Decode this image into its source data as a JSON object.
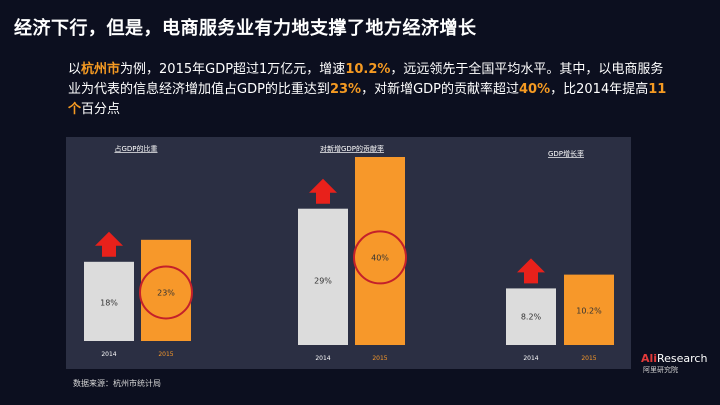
{
  "title": "经济下行，但是，电商服务业有力地支撑了地方经济增长",
  "paragraph": [
    {
      "text": "以",
      "hl": false
    },
    {
      "text": "杭州市",
      "hl": true
    },
    {
      "text": "为例，2015年GDP超过1万亿元，增速",
      "hl": false
    },
    {
      "text": "10.2%",
      "hl": true
    },
    {
      "text": "，远远领先于全国平均水平。其中，以电商服务业为代表的信息经济增加值占GDP的比重达到",
      "hl": false
    },
    {
      "text": "23%",
      "hl": true
    },
    {
      "text": "，对新增GDP的贡献率超过",
      "hl": false
    },
    {
      "text": "40%",
      "hl": true
    },
    {
      "text": "，比2014年提高",
      "hl": false
    },
    {
      "text": "11个",
      "hl": true
    },
    {
      "text": "百分点",
      "hl": false
    }
  ],
  "colors": {
    "bar_2014": "#dcdcdc",
    "bar_2015": "#f7982a",
    "arrow": "#e8211b",
    "circle": "#c4202a",
    "highlight": "#f59a22",
    "year_2014": "#ffffff",
    "year_2015": "#f7982a"
  },
  "chart_data": [
    {
      "type": "bar",
      "title": "占GDP的比重",
      "categories": [
        "2014",
        "2015"
      ],
      "values": [
        18,
        23
      ],
      "labels": [
        "18%",
        "23%"
      ],
      "ylim": [
        0,
        50
      ],
      "highlight": "2015"
    },
    {
      "type": "bar",
      "title": "对新增GDP的贡献率",
      "categories": [
        "2014",
        "2015"
      ],
      "values": [
        29,
        40
      ],
      "labels": [
        "29%",
        "40%"
      ],
      "ylim": [
        0,
        50
      ],
      "highlight": "2015"
    },
    {
      "type": "bar",
      "title": "GDP增长率",
      "categories": [
        "2014",
        "2015"
      ],
      "values": [
        8.2,
        10.2
      ],
      "labels": [
        "8.2%",
        "10.2%"
      ],
      "ylim": [
        0,
        20
      ],
      "highlight": null
    }
  ],
  "source": "数据来源：杭州市统计局",
  "logo": {
    "ali": "Ali",
    "research": "Research",
    "sub": "阿里研究院"
  }
}
